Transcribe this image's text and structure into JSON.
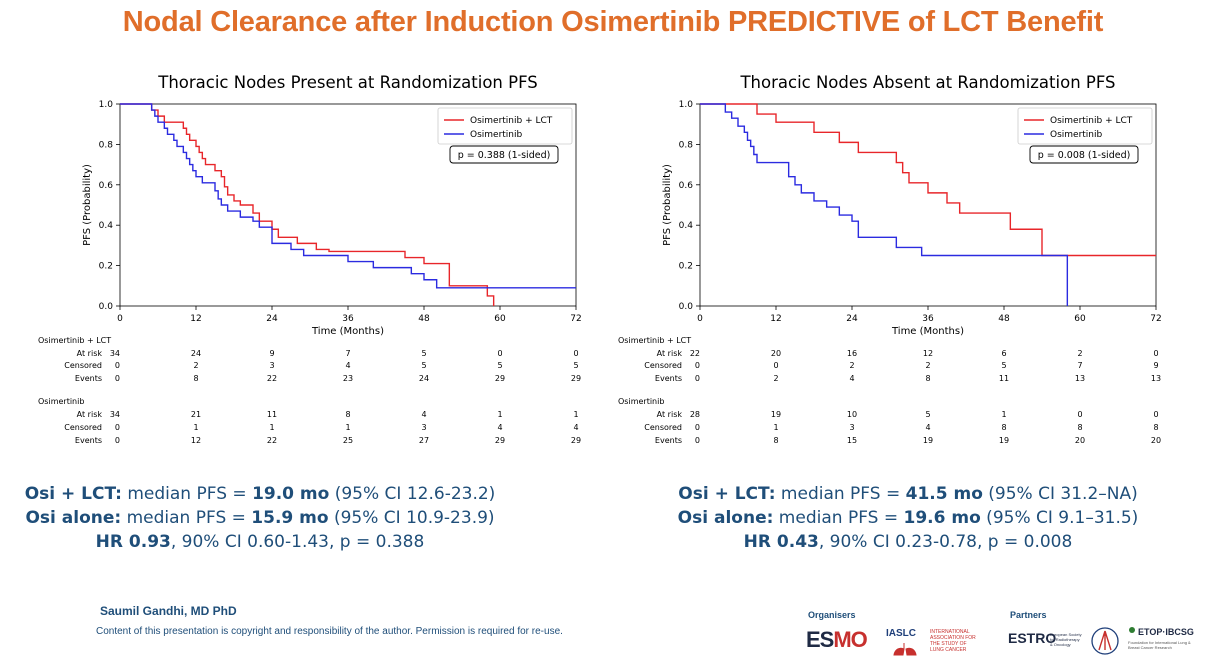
{
  "slide": {
    "title": "Nodal Clearance after Induction Osimertinib PREDICTIVE of LCT Benefit",
    "title_color": "#E06E2A",
    "author": "Saumil Gandhi, MD PhD",
    "copyright": "Content of this presentation is copyright and responsibility of the author. Permission is required for re-use."
  },
  "colors": {
    "lct": "#E8262A",
    "osi": "#2B2BE0",
    "summary": "#1F4E79"
  },
  "footer": {
    "organisers_label": "Organisers",
    "partners_label": "Partners",
    "esmo_a": "ES",
    "esmo_b": "MO",
    "iaslc": "IASLC",
    "iaslc_sub": "INTERNATIONAL ASSOCIATION FOR THE STUDY OF LUNG CANCER",
    "estro": "ESTRO",
    "estro_sub": "European Society for Radiotherapy & Oncology",
    "etop": "ETOP·IBCSG",
    "etop_sub": "Foundation for International Lung & Breast Cancer Research"
  },
  "chart_data": [
    {
      "type": "line",
      "title": "Thoracic Nodes Present at Randomization PFS",
      "xlabel": "Time (Months)",
      "ylabel": "PFS (Probability)",
      "xlim": [
        0,
        72
      ],
      "ylim": [
        0,
        1.0
      ],
      "xticks": [
        0,
        12,
        24,
        36,
        48,
        60,
        72
      ],
      "yticks": [
        0.0,
        0.2,
        0.4,
        0.6,
        0.8,
        1.0
      ],
      "xtick_labels": [
        "0",
        "12",
        "24",
        "36",
        "48",
        "60",
        "72"
      ],
      "ytick_labels": [
        "0.0",
        "0.2",
        "0.4",
        "0.6",
        "0.8",
        "1.0"
      ],
      "legend_position": "top-right",
      "annotation": "p = 0.388 (1-sided)",
      "series": [
        {
          "name": "Osimertinib + LCT",
          "key": "lct",
          "steps": [
            [
              0,
              1.0
            ],
            [
              5,
              0.97
            ],
            [
              6,
              0.94
            ],
            [
              7,
              0.91
            ],
            [
              10,
              0.88
            ],
            [
              10.5,
              0.85
            ],
            [
              11,
              0.82
            ],
            [
              12,
              0.79
            ],
            [
              12.5,
              0.76
            ],
            [
              13,
              0.73
            ],
            [
              13.5,
              0.7
            ],
            [
              15,
              0.67
            ],
            [
              16,
              0.64
            ],
            [
              16.5,
              0.59
            ],
            [
              17,
              0.55
            ],
            [
              18,
              0.52
            ],
            [
              19,
              0.5
            ],
            [
              21,
              0.46
            ],
            [
              22,
              0.42
            ],
            [
              24,
              0.38
            ],
            [
              25,
              0.34
            ],
            [
              28,
              0.31
            ],
            [
              31,
              0.28
            ],
            [
              33,
              0.27
            ],
            [
              45,
              0.24
            ],
            [
              48,
              0.21
            ],
            [
              52,
              0.1
            ],
            [
              58,
              0.05
            ],
            [
              59,
              0.0
            ]
          ],
          "end": 59
        },
        {
          "name": "Osimertinib",
          "key": "osi",
          "steps": [
            [
              0,
              1.0
            ],
            [
              5,
              0.97
            ],
            [
              5.5,
              0.94
            ],
            [
              6,
              0.91
            ],
            [
              7,
              0.88
            ],
            [
              7.5,
              0.85
            ],
            [
              8.5,
              0.82
            ],
            [
              9,
              0.79
            ],
            [
              10,
              0.76
            ],
            [
              10.5,
              0.73
            ],
            [
              11,
              0.7
            ],
            [
              11.5,
              0.67
            ],
            [
              12,
              0.64
            ],
            [
              13,
              0.61
            ],
            [
              15,
              0.57
            ],
            [
              15.5,
              0.53
            ],
            [
              16,
              0.5
            ],
            [
              17,
              0.47
            ],
            [
              19,
              0.44
            ],
            [
              21,
              0.42
            ],
            [
              22,
              0.39
            ],
            [
              24,
              0.31
            ],
            [
              27,
              0.28
            ],
            [
              29,
              0.25
            ],
            [
              36,
              0.22
            ],
            [
              40,
              0.19
            ],
            [
              46,
              0.16
            ],
            [
              48,
              0.13
            ],
            [
              50,
              0.09
            ],
            [
              72,
              0.09
            ]
          ],
          "end": 72
        }
      ],
      "risk_table": [
        {
          "name": "Osimertinib + LCT",
          "rows": [
            {
              "label": "At risk",
              "first": "34",
              "values": [
                "24",
                "9",
                "7",
                "5",
                "0",
                "0"
              ]
            },
            {
              "label": "Censored",
              "first": "0",
              "values": [
                "2",
                "3",
                "4",
                "5",
                "5",
                "5"
              ]
            },
            {
              "label": "Events",
              "first": "0",
              "values": [
                "8",
                "22",
                "23",
                "24",
                "29",
                "29"
              ]
            }
          ]
        },
        {
          "name": "Osimertinib",
          "rows": [
            {
              "label": "At risk",
              "first": "34",
              "values": [
                "21",
                "11",
                "8",
                "4",
                "1",
                "1"
              ]
            },
            {
              "label": "Censored",
              "first": "0",
              "values": [
                "1",
                "1",
                "1",
                "3",
                "4",
                "4"
              ]
            },
            {
              "label": "Events",
              "first": "0",
              "values": [
                "12",
                "22",
                "25",
                "27",
                "29",
                "29"
              ]
            }
          ]
        }
      ]
    },
    {
      "type": "line",
      "title": "Thoracic Nodes Absent at Randomization PFS",
      "xlabel": "Time (Months)",
      "ylabel": "PFS (Probability)",
      "xlim": [
        0,
        72
      ],
      "ylim": [
        0,
        1.0
      ],
      "xticks": [
        0,
        12,
        24,
        36,
        48,
        60,
        72
      ],
      "yticks": [
        0.0,
        0.2,
        0.4,
        0.6,
        0.8,
        1.0
      ],
      "xtick_labels": [
        "0",
        "12",
        "24",
        "36",
        "48",
        "60",
        "72"
      ],
      "ytick_labels": [
        "0.0",
        "0.2",
        "0.4",
        "0.6",
        "0.8",
        "1.0"
      ],
      "legend_position": "top-right",
      "annotation": "p = 0.008 (1-sided)",
      "series": [
        {
          "name": "Osimertinib + LCT",
          "key": "lct",
          "steps": [
            [
              0,
              1.0
            ],
            [
              9,
              0.95
            ],
            [
              12,
              0.91
            ],
            [
              18,
              0.86
            ],
            [
              22,
              0.81
            ],
            [
              25,
              0.76
            ],
            [
              31,
              0.71
            ],
            [
              32,
              0.66
            ],
            [
              33,
              0.61
            ],
            [
              36,
              0.56
            ],
            [
              39,
              0.51
            ],
            [
              41,
              0.46
            ],
            [
              49,
              0.38
            ],
            [
              54,
              0.25
            ],
            [
              72,
              0.25
            ]
          ],
          "end": 72
        },
        {
          "name": "Osimertinib",
          "key": "osi",
          "steps": [
            [
              0,
              1.0
            ],
            [
              4,
              0.96
            ],
            [
              5,
              0.93
            ],
            [
              6,
              0.89
            ],
            [
              7,
              0.86
            ],
            [
              7.5,
              0.82
            ],
            [
              8,
              0.79
            ],
            [
              8.5,
              0.75
            ],
            [
              9,
              0.71
            ],
            [
              14,
              0.64
            ],
            [
              15,
              0.6
            ],
            [
              16,
              0.56
            ],
            [
              18,
              0.52
            ],
            [
              20,
              0.49
            ],
            [
              22,
              0.45
            ],
            [
              24,
              0.42
            ],
            [
              25,
              0.34
            ],
            [
              31,
              0.29
            ],
            [
              35,
              0.25
            ],
            [
              57,
              0.25
            ],
            [
              58,
              0.0
            ]
          ],
          "end": 58
        }
      ],
      "risk_table": [
        {
          "name": "Osimertinib + LCT",
          "rows": [
            {
              "label": "At risk",
              "first": "22",
              "values": [
                "20",
                "16",
                "12",
                "6",
                "2",
                "0"
              ]
            },
            {
              "label": "Censored",
              "first": "0",
              "values": [
                "0",
                "2",
                "2",
                "5",
                "7",
                "9"
              ]
            },
            {
              "label": "Events",
              "first": "0",
              "values": [
                "2",
                "4",
                "8",
                "11",
                "13",
                "13"
              ]
            }
          ]
        },
        {
          "name": "Osimertinib",
          "rows": [
            {
              "label": "At risk",
              "first": "28",
              "values": [
                "19",
                "10",
                "5",
                "1",
                "0",
                "0"
              ]
            },
            {
              "label": "Censored",
              "first": "0",
              "values": [
                "1",
                "3",
                "4",
                "8",
                "8",
                "8"
              ]
            },
            {
              "label": "Events",
              "first": "0",
              "values": [
                "8",
                "15",
                "19",
                "19",
                "20",
                "20"
              ]
            }
          ]
        }
      ]
    }
  ],
  "summaries": [
    {
      "lct_label": "Osi + LCT:",
      "lct_pre": " median PFS = ",
      "lct_median": "19.0 mo",
      "lct_ci": " (95% CI 12.6-23.2)",
      "osi_label": "Osi alone:",
      "osi_pre": " median PFS = ",
      "osi_median": "15.9 mo",
      "osi_ci": " (95% CI 10.9-23.9)",
      "hr_bold": "HR 0.93",
      "hr_rest": ", 90% CI 0.60-1.43, p = 0.388"
    },
    {
      "lct_label": "Osi + LCT:",
      "lct_pre": " median PFS = ",
      "lct_median": "41.5 mo",
      "lct_ci": " (95% CI 31.2–NA)",
      "osi_label": "Osi alone:",
      "osi_pre": " median PFS = ",
      "osi_median": "19.6 mo",
      "osi_ci": " (95% CI 9.1–31.5)",
      "hr_bold": "HR 0.43",
      "hr_rest": ", 90% CI 0.23-0.78, p = 0.008"
    }
  ]
}
